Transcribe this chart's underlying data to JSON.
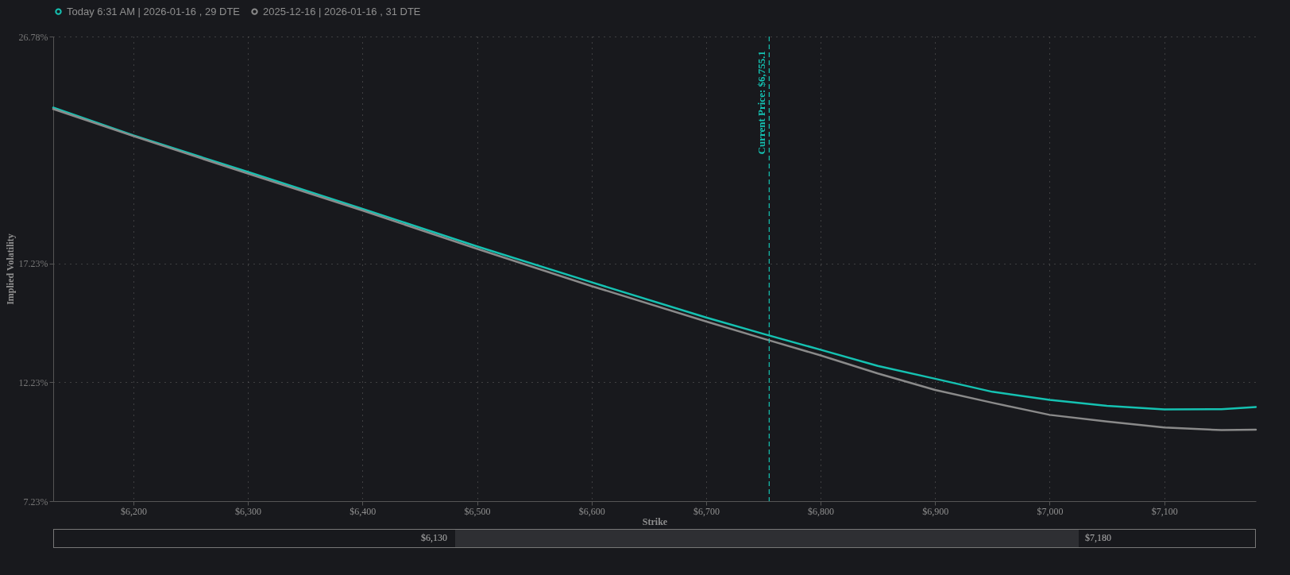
{
  "chart_data": {
    "type": "line",
    "xlabel": "Strike",
    "ylabel": "Implied Volatility",
    "x": [
      6130,
      6200,
      6300,
      6400,
      6500,
      6600,
      6700,
      6750,
      6800,
      6850,
      6900,
      6950,
      7000,
      7050,
      7100,
      7150,
      7180
    ],
    "series": [
      {
        "name": "Today 6:31 AM | 2026-01-16 , 29 DTE",
        "color": "#15c2b2",
        "values": [
          23.79,
          22.62,
          21.08,
          19.53,
          17.95,
          16.44,
          14.96,
          14.27,
          13.6,
          12.92,
          12.38,
          11.83,
          11.49,
          11.24,
          11.09,
          11.1,
          11.19
        ]
      },
      {
        "name": "2025-12-16 | 2026-01-16 , 31 DTE",
        "color": "#8a8a8a",
        "values": [
          23.73,
          22.59,
          21.01,
          19.46,
          17.85,
          16.28,
          14.79,
          14.07,
          13.36,
          12.6,
          11.91,
          11.37,
          10.86,
          10.58,
          10.33,
          10.22,
          10.24
        ]
      }
    ],
    "xlim": [
      6130,
      7180
    ],
    "xticks": [
      {
        "value": 6200,
        "label": "$6,200"
      },
      {
        "value": 6300,
        "label": "$6,300"
      },
      {
        "value": 6400,
        "label": "$6,400"
      },
      {
        "value": 6500,
        "label": "$6,500"
      },
      {
        "value": 6600,
        "label": "$6,600"
      },
      {
        "value": 6700,
        "label": "$6,700"
      },
      {
        "value": 6800,
        "label": "$6,800"
      },
      {
        "value": 6900,
        "label": "$6,900"
      },
      {
        "value": 7000,
        "label": "$7,000"
      },
      {
        "value": 7100,
        "label": "$7,100"
      }
    ],
    "ylim": [
      7.23,
      26.78
    ],
    "yticks": [
      {
        "value": 7.23,
        "label": "7.23%"
      },
      {
        "value": 12.23,
        "label": "12.23%"
      },
      {
        "value": 17.23,
        "label": "17.23%"
      },
      {
        "value": 26.78,
        "label": "26.78%"
      }
    ],
    "ref_lines": [
      {
        "axis": "x",
        "value": 6755.1,
        "label": "Current Price: $6,755.1",
        "color": "#15c2b2",
        "line_style": "dashed"
      }
    ],
    "annotations": [
      "$6,130",
      "$7,180"
    ],
    "grid": true,
    "legend": "top",
    "marker": "none",
    "line_style": "solid"
  }
}
